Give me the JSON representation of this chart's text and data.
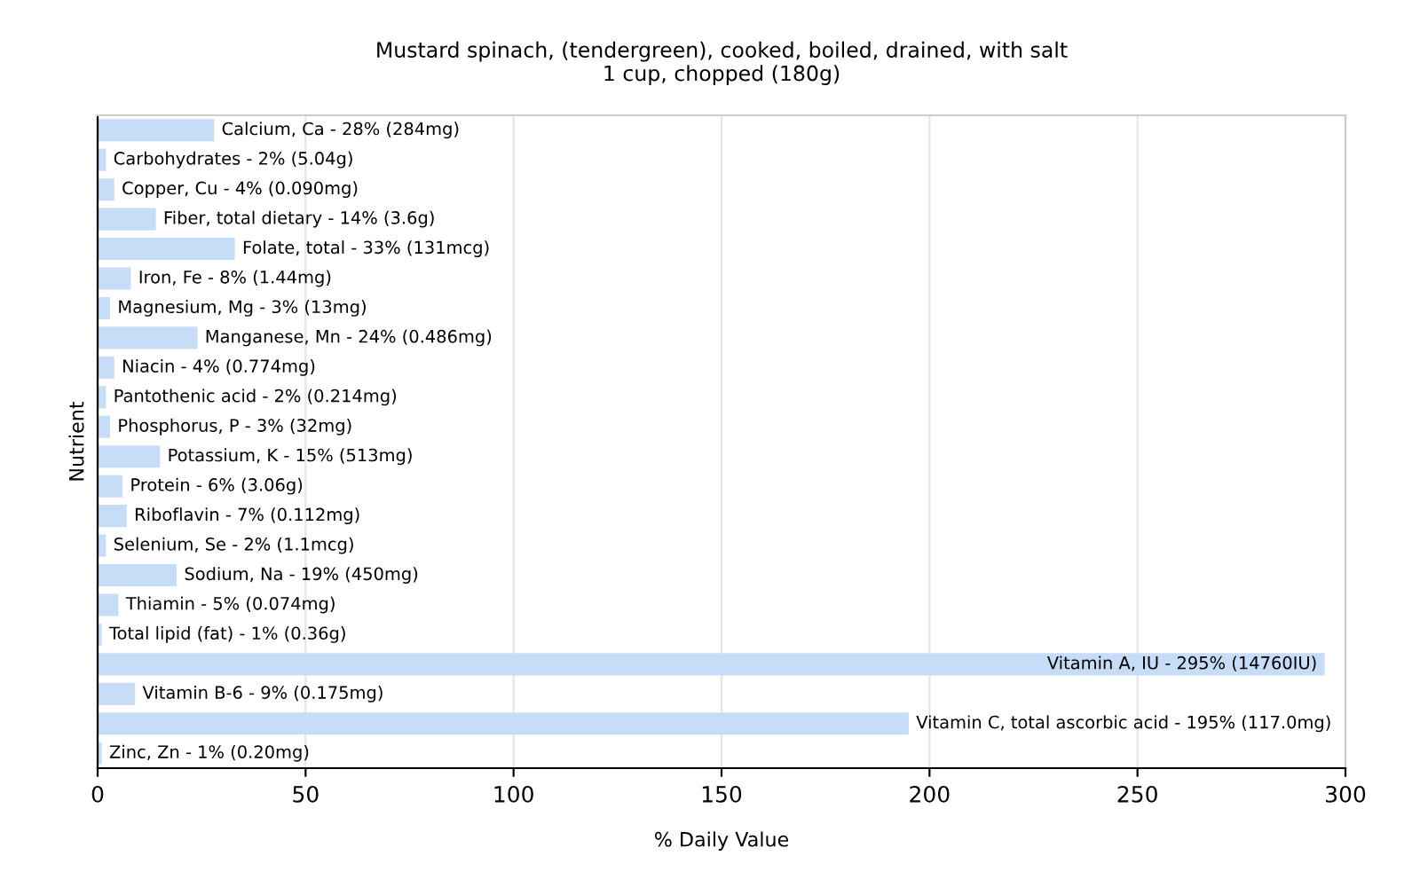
{
  "chart_data": {
    "type": "bar",
    "orientation": "horizontal",
    "title": "Mustard spinach, (tendergreen), cooked, boiled, drained, with salt\n1 cup, chopped (180g)",
    "xlabel": "% Daily Value",
    "ylabel": "Nutrient",
    "categories": [
      "Calcium, Ca - 28% (284mg)",
      "Carbohydrates - 2% (5.04g)",
      "Copper, Cu - 4% (0.090mg)",
      "Fiber, total dietary - 14% (3.6g)",
      "Folate, total - 33% (131mcg)",
      "Iron, Fe - 8% (1.44mg)",
      "Magnesium, Mg - 3% (13mg)",
      "Manganese, Mn - 24% (0.486mg)",
      "Niacin - 4% (0.774mg)",
      "Pantothenic acid - 2% (0.214mg)",
      "Phosphorus, P - 3% (32mg)",
      "Potassium, K - 15% (513mg)",
      "Protein - 6% (3.06g)",
      "Riboflavin - 7% (0.112mg)",
      "Selenium, Se - 2% (1.1mcg)",
      "Sodium, Na - 19% (450mg)",
      "Thiamin - 5% (0.074mg)",
      "Total lipid (fat) - 1% (0.36g)",
      "Vitamin A, IU - 295% (14760IU)",
      "Vitamin B-6 - 9% (0.175mg)",
      "Vitamin C, total ascorbic acid - 195% (117.0mg)",
      "Zinc, Zn - 1% (0.20mg)"
    ],
    "values": [
      28,
      2,
      4,
      14,
      33,
      8,
      3,
      24,
      4,
      2,
      3,
      15,
      6,
      7,
      2,
      19,
      5,
      1,
      295,
      9,
      195,
      1
    ],
    "color": "#c6dcf7",
    "xlim": [
      0,
      300
    ],
    "xticks": [
      0,
      50,
      100,
      150,
      200,
      250,
      300
    ],
    "grid": "x",
    "tick_labels": "x"
  }
}
